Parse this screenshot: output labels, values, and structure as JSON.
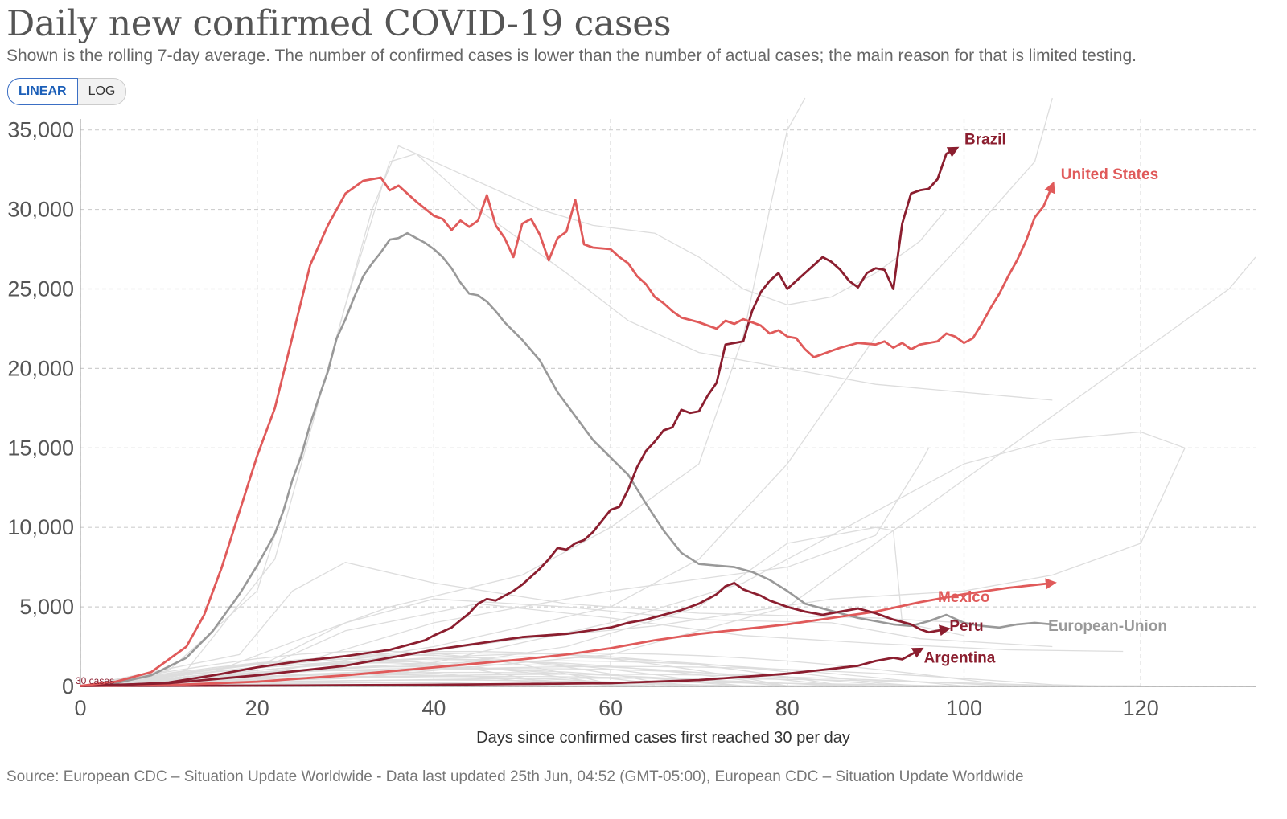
{
  "title": "Daily new confirmed COVID-19 cases",
  "subtitle": "Shown is the rolling 7-day average. The number of confirmed cases is lower than the number of actual cases; the main reason for that is limited testing.",
  "scale_toggle": {
    "linear_label": "LINEAR",
    "log_label": "LOG",
    "selected": "LINEAR"
  },
  "source": "Source: European CDC – Situation Update Worldwide - Data last updated 25th Jun, 04:52 (GMT-05:00), European CDC – Situation Update Worldwide",
  "colors": {
    "united_states": "#e05a5a",
    "brazil": "#8b1e2f",
    "european_union": "#999999",
    "mexico": "#e05a5a",
    "peru": "#8b1e2f",
    "argentina": "#8b1e2f",
    "background_lines": "#dddddd",
    "grid": "#cfcfcf"
  },
  "chart_data": {
    "type": "line",
    "xlabel": "Days since confirmed cases first reached 30 per day",
    "ylabel": "",
    "xlim": [
      0,
      133
    ],
    "ylim": [
      0,
      36500
    ],
    "x_ticks": [
      0,
      20,
      40,
      60,
      80,
      100,
      120
    ],
    "x_tick_labels": [
      "0",
      "20",
      "40",
      "60",
      "80",
      "100",
      "120"
    ],
    "y_ticks": [
      0,
      5000,
      10000,
      15000,
      20000,
      25000,
      30000,
      35000
    ],
    "y_tick_labels": [
      "0",
      "5,000",
      "10,000",
      "15,000",
      "20,000",
      "25,000",
      "30,000",
      "35,000"
    ],
    "grid": true,
    "threshold_label": "30 cases",
    "series": [
      {
        "name": "United States",
        "color": "#e05a5a",
        "x": [
          0,
          4,
          8,
          12,
          14,
          16,
          18,
          20,
          22,
          24,
          26,
          28,
          30,
          32,
          34,
          35,
          36,
          37,
          38,
          40,
          41,
          42,
          43,
          44,
          45,
          46,
          47,
          48,
          49,
          50,
          51,
          52,
          53,
          54,
          55,
          56,
          57,
          58,
          60,
          61,
          62,
          63,
          64,
          65,
          66,
          67,
          68,
          70,
          71,
          72,
          73,
          74,
          75,
          76,
          77,
          78,
          79,
          80,
          81,
          82,
          83,
          84,
          85,
          86,
          88,
          90,
          91,
          92,
          93,
          94,
          95,
          96,
          97,
          98,
          99,
          100,
          101,
          102,
          103,
          104,
          105,
          106,
          107,
          108,
          109,
          110
        ],
        "y": [
          30,
          300,
          900,
          2500,
          4500,
          7500,
          11000,
          14500,
          17500,
          22000,
          26500,
          29000,
          31000,
          31800,
          32000,
          31200,
          31500,
          31000,
          30500,
          29600,
          29400,
          28700,
          29300,
          28900,
          29300,
          30900,
          29000,
          28200,
          27000,
          29100,
          29400,
          28400,
          26800,
          28200,
          28600,
          30600,
          27800,
          27600,
          27500,
          27000,
          26600,
          25800,
          25300,
          24500,
          24100,
          23600,
          23200,
          22900,
          22700,
          22500,
          23000,
          22800,
          23100,
          22900,
          22700,
          22200,
          22400,
          22000,
          21900,
          21200,
          20700,
          20900,
          21100,
          21300,
          21600,
          21500,
          21700,
          21300,
          21600,
          21200,
          21500,
          21600,
          21700,
          22200,
          22000,
          21600,
          21900,
          22800,
          23800,
          24700,
          25800,
          26800,
          28000,
          29500,
          30200,
          31500
        ]
      },
      {
        "name": "Brazil",
        "color": "#8b1e2f",
        "x": [
          0,
          5,
          10,
          15,
          20,
          25,
          30,
          35,
          37,
          39,
          40,
          42,
          44,
          45,
          46,
          47,
          48,
          49,
          50,
          51,
          52,
          53,
          54,
          55,
          56,
          57,
          58,
          59,
          60,
          61,
          62,
          63,
          64,
          65,
          66,
          67,
          68,
          69,
          70,
          71,
          72,
          73,
          74,
          75,
          76,
          77,
          78,
          79,
          80,
          81,
          82,
          83,
          84,
          85,
          86,
          87,
          88,
          89,
          90,
          91,
          92,
          93,
          94,
          95,
          96,
          97,
          98,
          99
        ],
        "y": [
          30,
          100,
          250,
          700,
          1200,
          1600,
          1900,
          2300,
          2600,
          2900,
          3200,
          3700,
          4600,
          5200,
          5500,
          5400,
          5700,
          6000,
          6400,
          6900,
          7400,
          8000,
          8700,
          8600,
          9000,
          9200,
          9700,
          10400,
          11100,
          11300,
          12400,
          13800,
          14800,
          15400,
          16100,
          16300,
          17400,
          17200,
          17300,
          18300,
          19100,
          21500,
          21600,
          21700,
          23600,
          24800,
          25500,
          26000,
          25000,
          25500,
          26000,
          26500,
          27000,
          26700,
          26200,
          25500,
          25100,
          26000,
          26300,
          26200,
          25000,
          29100,
          31000,
          31200,
          31300,
          31900,
          33500,
          33800
        ]
      },
      {
        "name": "European Union",
        "color": "#999999",
        "x": [
          0,
          4,
          8,
          12,
          15,
          18,
          20,
          22,
          23,
          24,
          25,
          26,
          27,
          28,
          29,
          30,
          31,
          32,
          33,
          34,
          35,
          36,
          37,
          38,
          39,
          40,
          41,
          42,
          43,
          44,
          45,
          46,
          47,
          48,
          50,
          52,
          54,
          56,
          58,
          60,
          62,
          64,
          66,
          68,
          70,
          72,
          74,
          76,
          78,
          80,
          82,
          84,
          86,
          88,
          90,
          92,
          94,
          96,
          98,
          100,
          102,
          104,
          106,
          108,
          110
        ],
        "y": [
          30,
          200,
          700,
          1800,
          3500,
          5800,
          7600,
          9600,
          11100,
          13000,
          14500,
          16500,
          18200,
          19800,
          21900,
          23100,
          24500,
          25800,
          26600,
          27300,
          28100,
          28200,
          28500,
          28200,
          27900,
          27500,
          27000,
          26300,
          25400,
          24700,
          24600,
          24200,
          23600,
          22900,
          21800,
          20500,
          18500,
          17000,
          15500,
          14400,
          13300,
          11500,
          9800,
          8400,
          7700,
          7600,
          7500,
          7200,
          6700,
          6000,
          5200,
          4900,
          4600,
          4300,
          4100,
          3900,
          3800,
          4100,
          4500,
          4000,
          3800,
          3700,
          3900,
          4000,
          3900
        ]
      },
      {
        "name": "Mexico",
        "color": "#e05a5a",
        "x": [
          0,
          10,
          20,
          30,
          40,
          50,
          55,
          60,
          65,
          70,
          75,
          80,
          85,
          90,
          95,
          100,
          105,
          110
        ],
        "y": [
          30,
          80,
          300,
          700,
          1200,
          1700,
          2000,
          2400,
          2900,
          3300,
          3600,
          3900,
          4300,
          4700,
          5300,
          5800,
          6200,
          6500
        ]
      },
      {
        "name": "Peru",
        "color": "#8b1e2f",
        "x": [
          0,
          10,
          20,
          30,
          35,
          40,
          45,
          50,
          55,
          60,
          62,
          64,
          66,
          68,
          70,
          72,
          73,
          74,
          75,
          76,
          77,
          78,
          80,
          82,
          84,
          86,
          88,
          90,
          92,
          94,
          95,
          96,
          97,
          98
        ],
        "y": [
          30,
          200,
          700,
          1300,
          1800,
          2300,
          2700,
          3100,
          3300,
          3700,
          4000,
          4200,
          4500,
          4800,
          5200,
          5800,
          6300,
          6500,
          6100,
          5900,
          5700,
          5400,
          5000,
          4700,
          4500,
          4700,
          4900,
          4600,
          4200,
          3900,
          3600,
          3400,
          3500,
          3600
        ]
      },
      {
        "name": "Argentina",
        "color": "#8b1e2f",
        "x": [
          0,
          20,
          40,
          60,
          70,
          80,
          85,
          88,
          90,
          91,
          92,
          93,
          94,
          95
        ],
        "y": [
          30,
          50,
          100,
          200,
          400,
          800,
          1100,
          1300,
          1600,
          1700,
          1800,
          1700,
          2000,
          2300
        ]
      }
    ],
    "series_labels": [
      "Brazil",
      "United States",
      "Mexico",
      "Peru",
      "Argentina",
      "European-Union"
    ]
  }
}
